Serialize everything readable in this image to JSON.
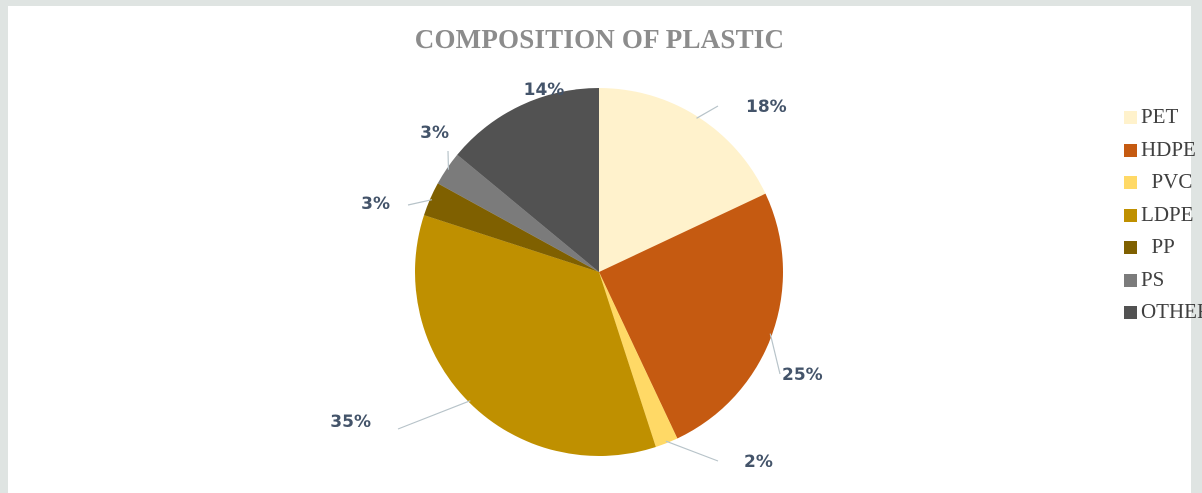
{
  "chart_data": {
    "type": "pie",
    "title": "COMPOSITION OF PLASTIC",
    "categories": [
      "PET",
      "HDPE",
      " PVC",
      "LDPE",
      " PP",
      "PS",
      "OTHER"
    ],
    "values": [
      18,
      25,
      2,
      35,
      3,
      3,
      14
    ],
    "data_labels": [
      "18%",
      "25%",
      "2%",
      "35%",
      "3%",
      "3%",
      "14%"
    ],
    "colors": [
      "#fff2cc",
      "#c55a11",
      "#ffd966",
      "#bf9000",
      "#7f6000",
      "#7b7b7b",
      "#525252"
    ],
    "legend": "right",
    "start_angle_deg": 0,
    "direction": "clockwise"
  }
}
